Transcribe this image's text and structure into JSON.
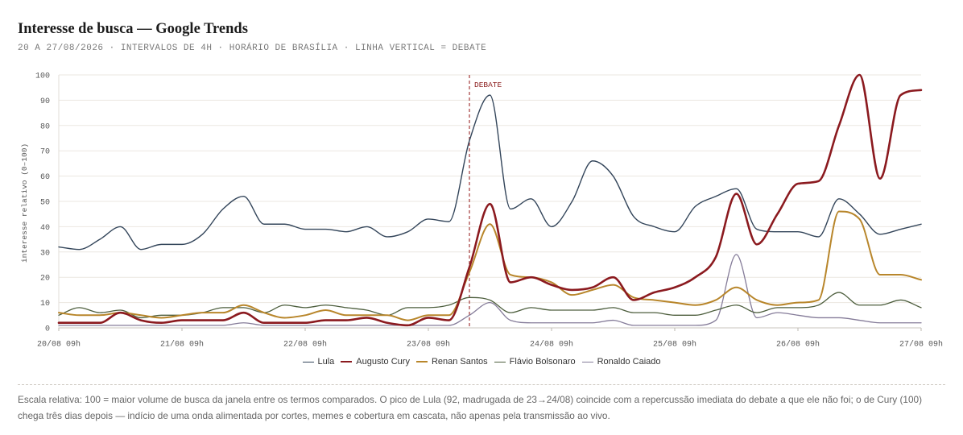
{
  "chart_data": {
    "type": "line",
    "title": "Interesse de busca — Google Trends",
    "subtitle": "20 A 27/08/2026 · INTERVALOS DE 4H · HORÁRIO DE BRASÍLIA · LINHA VERTICAL = DEBATE",
    "xlabel": "",
    "ylabel": "interesse relativo (0–100)",
    "ylim": [
      0,
      100
    ],
    "yticks": [
      0,
      10,
      20,
      30,
      40,
      50,
      60,
      70,
      80,
      90,
      100
    ],
    "xticks": [
      "20/08 09h",
      "21/08 09h",
      "22/08 09h",
      "23/08 09h",
      "24/08 09h",
      "25/08 09h",
      "26/08 09h",
      "27/08 09h"
    ],
    "x": [
      "20/08 09h",
      "20/08 13h",
      "20/08 17h",
      "20/08 21h",
      "21/08 01h",
      "21/08 05h",
      "21/08 09h",
      "21/08 13h",
      "21/08 17h",
      "21/08 21h",
      "22/08 01h",
      "22/08 05h",
      "22/08 09h",
      "22/08 13h",
      "22/08 17h",
      "22/08 21h",
      "23/08 01h",
      "23/08 05h",
      "23/08 09h",
      "23/08 13h",
      "23/08 17h",
      "23/08 21h",
      "24/08 01h",
      "24/08 05h",
      "24/08 09h",
      "24/08 13h",
      "24/08 17h",
      "24/08 21h",
      "25/08 01h",
      "25/08 05h",
      "25/08 09h",
      "25/08 13h",
      "25/08 17h",
      "25/08 21h",
      "26/08 01h",
      "26/08 05h",
      "26/08 09h",
      "26/08 13h",
      "26/08 17h",
      "26/08 21h",
      "27/08 01h",
      "27/08 05h",
      "27/08 09h"
    ],
    "series": [
      {
        "name": "Lula",
        "color": "#33455a",
        "values": [
          32,
          31,
          35,
          40,
          31,
          33,
          33,
          37,
          47,
          52,
          41,
          41,
          39,
          39,
          38,
          40,
          36,
          38,
          43,
          42,
          74,
          92,
          47,
          51,
          40,
          50,
          66,
          60,
          44,
          40,
          38,
          48,
          52,
          55,
          39,
          38,
          38,
          36,
          51,
          45,
          37,
          39,
          41
        ]
      },
      {
        "name": "Augusto Cury",
        "color": "#8b1a1f",
        "values": [
          2,
          2,
          2,
          6,
          3,
          2,
          3,
          3,
          3,
          6,
          2,
          2,
          2,
          3,
          3,
          4,
          2,
          1,
          4,
          3,
          24,
          49,
          18,
          20,
          17,
          15,
          16,
          20,
          11,
          14,
          16,
          20,
          28,
          53,
          33,
          45,
          57,
          58,
          80,
          100,
          59,
          92,
          94
        ]
      },
      {
        "name": "Renan Santos",
        "color": "#b8862b",
        "values": [
          6,
          5,
          5,
          6,
          5,
          4,
          5,
          6,
          6,
          9,
          6,
          4,
          5,
          7,
          5,
          5,
          5,
          3,
          5,
          5,
          22,
          41,
          21,
          20,
          18,
          13,
          15,
          17,
          12,
          11,
          10,
          9,
          11,
          16,
          11,
          9,
          10,
          11,
          46,
          43,
          21,
          21,
          19
        ]
      },
      {
        "name": "Flávio Bolsonaro",
        "color": "#4d5e3d",
        "values": [
          5,
          8,
          6,
          7,
          4,
          5,
          5,
          6,
          8,
          8,
          6,
          9,
          8,
          9,
          8,
          7,
          5,
          8,
          8,
          9,
          12,
          11,
          6,
          8,
          7,
          7,
          7,
          8,
          6,
          6,
          5,
          5,
          7,
          9,
          6,
          8,
          8,
          9,
          14,
          9,
          9,
          11,
          8
        ]
      },
      {
        "name": "Ronaldo Caiado",
        "color": "#857c99",
        "values": [
          1,
          1,
          1,
          1,
          1,
          1,
          1,
          1,
          1,
          2,
          1,
          1,
          1,
          1,
          1,
          1,
          1,
          1,
          1,
          1,
          5,
          10,
          3,
          2,
          2,
          2,
          2,
          3,
          1,
          1,
          1,
          1,
          3,
          29,
          4,
          6,
          5,
          4,
          4,
          3,
          2,
          2,
          2
        ]
      }
    ],
    "annotations": [
      {
        "x": "23/08 17h",
        "label": "DEBATE",
        "color": "#a33a3a"
      }
    ],
    "grid": true,
    "legend": "bottom"
  },
  "footnote": "Escala relativa: 100 = maior volume de busca da janela entre os termos comparados. O pico de Lula (92, madrugada de 23→24/08) coincide com a repercussão imediata do debate a que ele não foi; o de Cury (100) chega três dias depois — indício de uma onda alimentada por cortes, memes e cobertura em cascata, não apenas pela transmissão ao vivo."
}
